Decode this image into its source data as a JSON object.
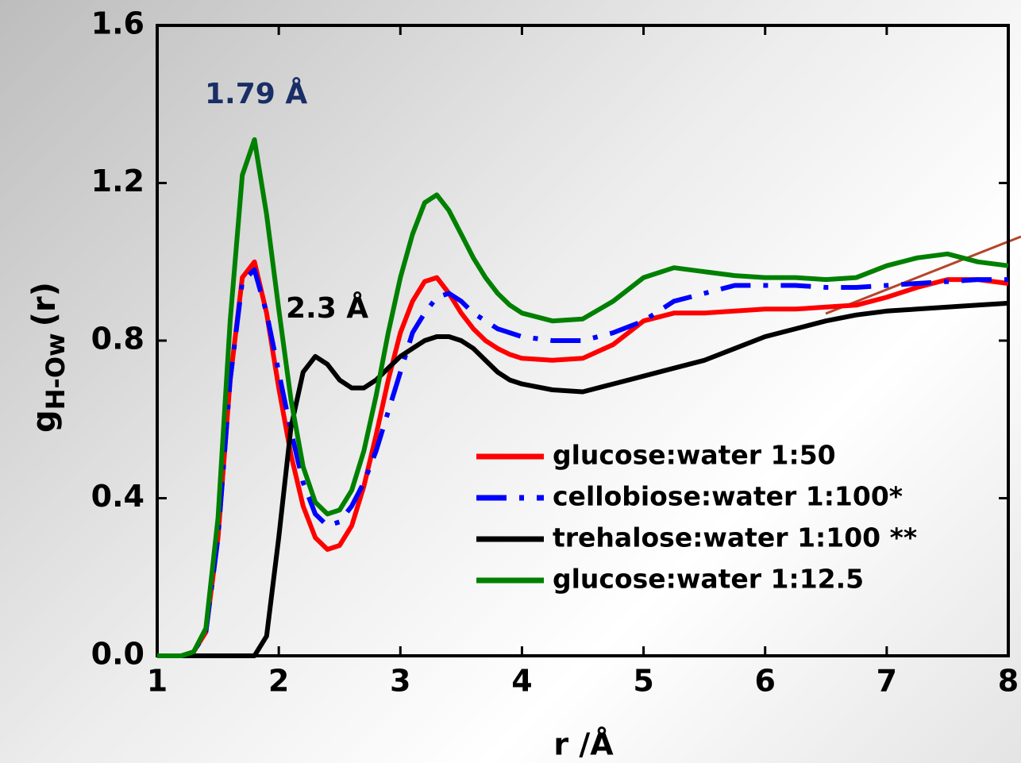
{
  "chart_data": {
    "type": "line",
    "x_label": "r /Å",
    "y_label": "g",
    "y_label_sub": "H-Ow",
    "y_label_suffix": "(r)",
    "annotations": [
      "1.79 Å",
      "2.3 Å"
    ],
    "xlim": [
      1,
      8
    ],
    "xticks": [
      1,
      2,
      3,
      4,
      5,
      6,
      7,
      8
    ],
    "ylim": [
      0,
      1.6
    ],
    "yticks": [
      {
        "value": 0,
        "label": "0.0"
      },
      0.4,
      0.8,
      1.2,
      1.6
    ],
    "legend": "lower right",
    "x": [
      1,
      1.1,
      1.2,
      1.3,
      1.4,
      1.5,
      1.6,
      1.7,
      1.8,
      1.9,
      2,
      2.1,
      2.2,
      2.3,
      2.4,
      2.5,
      2.6,
      2.7,
      2.8,
      2.9,
      3,
      3.1,
      3.2,
      3.3,
      3.4,
      3.5,
      3.6,
      3.7,
      3.8,
      3.9,
      4,
      4.25,
      4.5,
      4.75,
      5,
      5.25,
      5.5,
      5.75,
      6,
      6.25,
      6.5,
      6.75,
      7,
      7.25,
      7.5,
      7.75,
      8
    ],
    "series": [
      {
        "name": "glucose:water 1:50",
        "color": "#ff0000",
        "values": [
          0,
          0,
          0,
          0.01,
          0.06,
          0.3,
          0.7,
          0.96,
          1.0,
          0.87,
          0.68,
          0.51,
          0.38,
          0.3,
          0.27,
          0.28,
          0.33,
          0.43,
          0.56,
          0.7,
          0.82,
          0.9,
          0.95,
          0.96,
          0.92,
          0.87,
          0.83,
          0.8,
          0.78,
          0.765,
          0.755,
          0.75,
          0.755,
          0.79,
          0.85,
          0.87,
          0.87,
          0.875,
          0.88,
          0.88,
          0.885,
          0.89,
          0.91,
          0.935,
          0.955,
          0.955,
          0.945
        ]
      },
      {
        "name": "cellobiose:water 1:100*",
        "color": "#0000ff",
        "dash": "dashdot",
        "values": [
          0,
          0,
          0,
          0.01,
          0.06,
          0.3,
          0.7,
          0.95,
          0.98,
          0.87,
          0.72,
          0.57,
          0.44,
          0.36,
          0.33,
          0.34,
          0.38,
          0.44,
          0.52,
          0.62,
          0.72,
          0.82,
          0.87,
          0.91,
          0.92,
          0.9,
          0.87,
          0.85,
          0.83,
          0.82,
          0.81,
          0.8,
          0.8,
          0.82,
          0.85,
          0.9,
          0.92,
          0.94,
          0.94,
          0.94,
          0.935,
          0.935,
          0.94,
          0.945,
          0.95,
          0.955,
          0.955
        ]
      },
      {
        "name": "trehalose:water 1:100 **",
        "color": "#000000",
        "values": [
          0,
          0,
          0,
          0,
          0,
          0,
          0,
          0,
          0,
          0.05,
          0.3,
          0.58,
          0.72,
          0.76,
          0.74,
          0.7,
          0.68,
          0.68,
          0.7,
          0.73,
          0.76,
          0.78,
          0.8,
          0.81,
          0.81,
          0.8,
          0.78,
          0.75,
          0.72,
          0.7,
          0.69,
          0.675,
          0.67,
          0.69,
          0.71,
          0.73,
          0.75,
          0.78,
          0.81,
          0.83,
          0.85,
          0.865,
          0.875,
          0.88,
          0.885,
          0.89,
          0.895
        ]
      },
      {
        "name": "glucose:water 1:12.5",
        "color": "#008000",
        "values": [
          0,
          0,
          0,
          0.01,
          0.07,
          0.35,
          0.85,
          1.22,
          1.31,
          1.12,
          0.88,
          0.65,
          0.48,
          0.39,
          0.36,
          0.37,
          0.42,
          0.52,
          0.66,
          0.82,
          0.96,
          1.07,
          1.15,
          1.17,
          1.13,
          1.07,
          1.01,
          0.96,
          0.92,
          0.89,
          0.87,
          0.85,
          0.855,
          0.9,
          0.96,
          0.985,
          0.975,
          0.965,
          0.96,
          0.96,
          0.955,
          0.96,
          0.99,
          1.01,
          1.02,
          1.0,
          0.99
        ]
      }
    ]
  }
}
